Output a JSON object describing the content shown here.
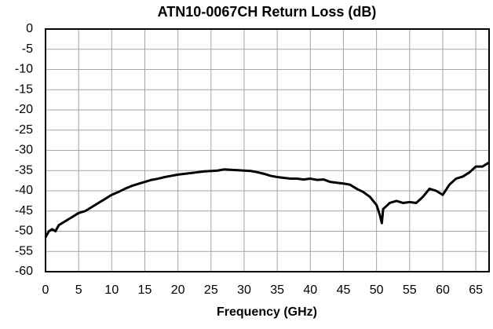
{
  "chart_data": {
    "type": "line",
    "title": "ATN10-0067CH Return Loss (dB)",
    "x_label": "Frequency (GHz)",
    "x": [
      0,
      0.5,
      1,
      1.5,
      2,
      3,
      4,
      5,
      6,
      7,
      8,
      9,
      10,
      11,
      12,
      13,
      14,
      15,
      16,
      17,
      18,
      19,
      20,
      21,
      22,
      23,
      24,
      25,
      26,
      27,
      28,
      29,
      30,
      31,
      32,
      33,
      34,
      35,
      36,
      37,
      38,
      39,
      40,
      41,
      42,
      43,
      44,
      45,
      46,
      47,
      48,
      49,
      50,
      50.5,
      50.8,
      51,
      52,
      53,
      54,
      55,
      56,
      57,
      58,
      59,
      60,
      61,
      62,
      63,
      64,
      65,
      66,
      67
    ],
    "series": [
      {
        "name": "Return Loss",
        "color": "#000000",
        "values": [
          -51.5,
          -50,
          -49.5,
          -50,
          -48.5,
          -47.5,
          -46.5,
          -45.5,
          -45,
          -44,
          -43,
          -42,
          -41,
          -40.3,
          -39.5,
          -38.8,
          -38.3,
          -37.8,
          -37.3,
          -37,
          -36.6,
          -36.3,
          -36,
          -35.8,
          -35.6,
          -35.4,
          -35.2,
          -35.1,
          -35,
          -34.7,
          -34.8,
          -34.9,
          -35,
          -35.1,
          -35.4,
          -35.8,
          -36.3,
          -36.6,
          -36.8,
          -37,
          -37,
          -37.2,
          -37,
          -37.3,
          -37.2,
          -37.8,
          -38,
          -38.2,
          -38.5,
          -39.5,
          -40.3,
          -41.5,
          -43.5,
          -46,
          -48,
          -44.5,
          -43,
          -42.5,
          -43,
          -42.8,
          -43,
          -41.5,
          -39.5,
          -40,
          -41,
          -38.5,
          -37,
          -36.5,
          -35.5,
          -34,
          -34,
          -33
        ]
      }
    ],
    "xlim": [
      0,
      67
    ],
    "xticks": [
      0,
      5,
      10,
      15,
      20,
      25,
      30,
      35,
      40,
      45,
      50,
      55,
      60,
      65
    ],
    "ylim": [
      -60,
      0
    ],
    "yticks": [
      0,
      -5,
      -10,
      -15,
      -20,
      -25,
      -30,
      -35,
      -40,
      -45,
      -50,
      -55,
      -60
    ],
    "grid": true
  }
}
